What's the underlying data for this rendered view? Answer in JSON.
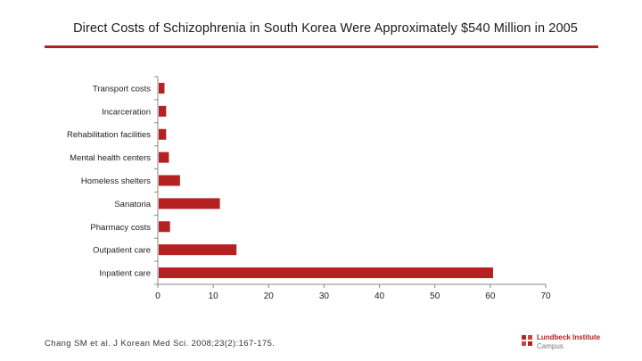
{
  "title": "Direct Costs of Schizophrenia in South Korea Were Approximately $540 Million in 2005",
  "source": "Chang SM et al. J Korean Med Sci. 2008;23(2):167-175.",
  "logo": {
    "line1": "Lundbeck Institute",
    "line2": "Campus"
  },
  "colors": {
    "bar": "#b52020",
    "accent": "#b52020"
  },
  "chart_data": {
    "type": "bar",
    "orientation": "horizontal",
    "categories": [
      "Transport costs",
      "Incarceration",
      "Rehabilitation facilities",
      "Mental health centers",
      "Homeless shelters",
      "Sanatoria",
      "Pharmacy costs",
      "Outpatient care",
      "Inpatient care"
    ],
    "values": [
      1.2,
      1.5,
      1.5,
      2.0,
      4.0,
      11.2,
      2.2,
      14.2,
      60.5
    ],
    "xlim": [
      0,
      70
    ],
    "xticks": [
      0,
      10,
      20,
      30,
      40,
      50,
      60,
      70
    ],
    "grid": false
  }
}
